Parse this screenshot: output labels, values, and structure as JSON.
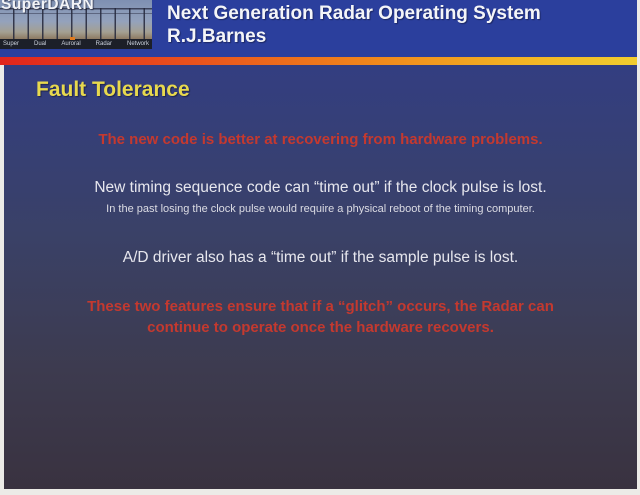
{
  "header": {
    "title": "Next Generation Radar Operating System",
    "author": "R.J.Barnes",
    "logo": {
      "name": "SuperDARN",
      "words": [
        "Super",
        "Dual",
        "Auroral",
        "Radar",
        "Network"
      ]
    }
  },
  "slide": {
    "heading": "Fault Tolerance",
    "paragraphs": [
      {
        "id": "intro",
        "style": "red-bold-centered",
        "text": "The new code is better at recovering from hardware problems."
      },
      {
        "id": "timing",
        "style": "white-centered",
        "text": "New timing sequence code can “time out” if the clock pulse is lost."
      },
      {
        "id": "timing-note",
        "style": "white-small-centered",
        "text": "In the past losing the clock pulse would require a physical reboot of the timing computer."
      },
      {
        "id": "ad-driver",
        "style": "white-centered",
        "text": "A/D driver also has a “time out” if the sample pulse is lost."
      },
      {
        "id": "conclusion",
        "style": "red-bold-centered",
        "text": "These two features ensure that if a “glitch” occurs, the Radar can continue to operate once the hardware recovers."
      }
    ]
  },
  "colors": {
    "header_blue": "#2b3f9d",
    "body_navy_top": "#333e81",
    "body_navy_bottom": "#393240",
    "heading_yellow": "#e8d94e",
    "emphasis_red": "#c4392f",
    "body_text_white": "#e7e7ee",
    "stripe_gradient_left": "#e1251d",
    "stripe_gradient_right": "#f2cd2f"
  }
}
